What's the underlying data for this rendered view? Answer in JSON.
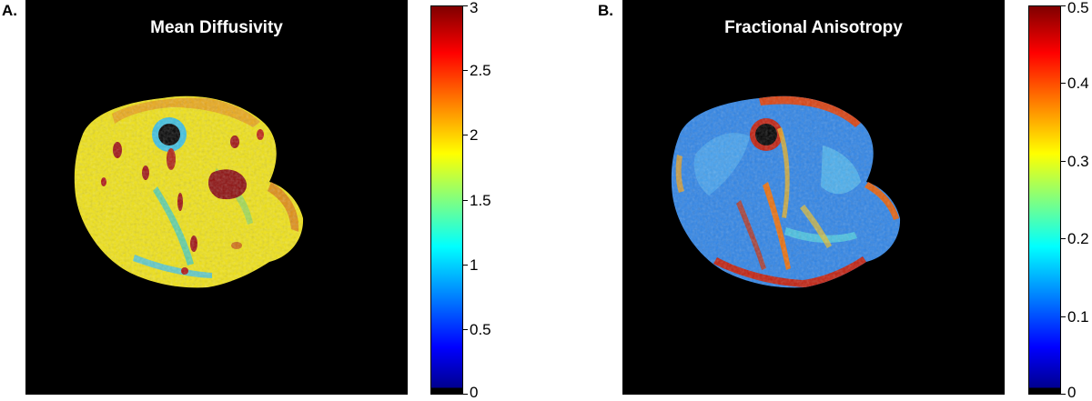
{
  "panels": [
    {
      "letter": "A.",
      "title": "Mean Diffusivity",
      "colorbar": {
        "colormap": "jet",
        "ticks": [
          "3",
          "2.5",
          "2",
          "1.5",
          "1",
          "0.5",
          "0"
        ]
      }
    },
    {
      "letter": "B.",
      "title": "Fractional Anisotropy",
      "colorbar": {
        "colormap": "jet",
        "ticks": [
          "0.5",
          "0.4",
          "0.3",
          "0.2",
          "0.1",
          "0"
        ]
      }
    }
  ],
  "colors": {
    "background": "#000000",
    "md_tissue": "#f2e60f",
    "fa_tissue": "#2e86e8",
    "hot": "#b01010"
  }
}
